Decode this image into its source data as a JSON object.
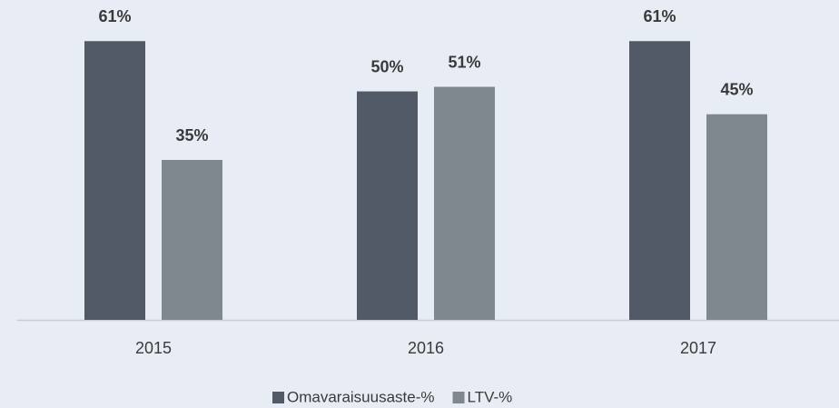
{
  "chart_data": {
    "type": "bar",
    "categories": [
      "2015",
      "2016",
      "2017"
    ],
    "series": [
      {
        "name": "Omavaraisuusaste-%",
        "color": "#525a68",
        "values": [
          61,
          50,
          61
        ],
        "value_labels": [
          "61%",
          "50%",
          "61%"
        ]
      },
      {
        "name": "LTV-%",
        "color": "#7f888e",
        "values": [
          35,
          51,
          45
        ],
        "value_labels": [
          "35%",
          "51%",
          "45%"
        ]
      }
    ],
    "ylim": [
      0,
      70
    ],
    "legend": "bottom"
  }
}
